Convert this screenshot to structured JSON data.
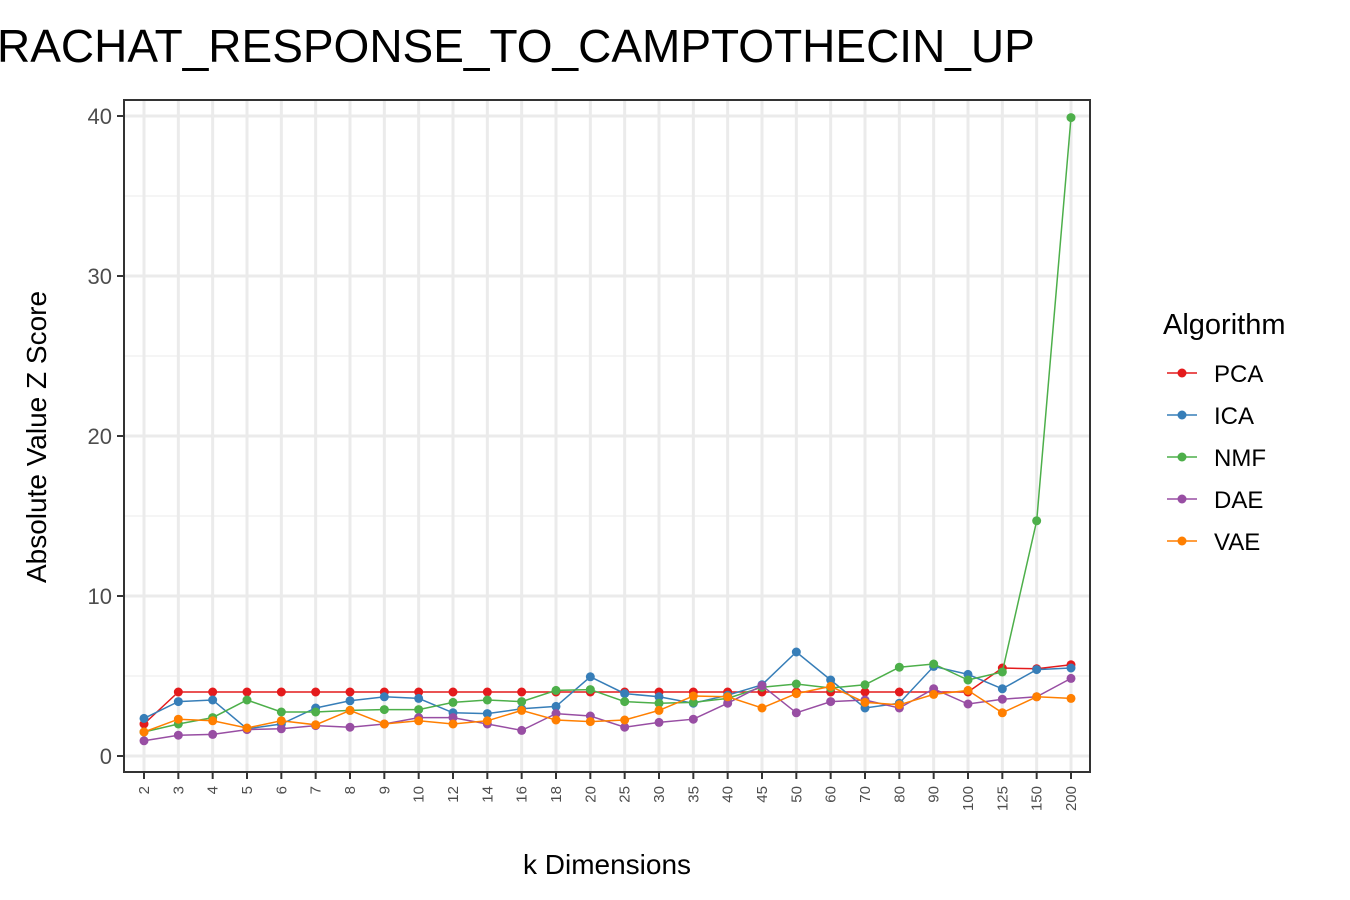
{
  "chart_data": {
    "type": "line",
    "title": "RACHAT_RESPONSE_TO_CAMPTOTHECIN_UP",
    "xlabel": "k Dimensions",
    "ylabel": "Absolute Value Z Score",
    "x": [
      "2",
      "3",
      "4",
      "5",
      "6",
      "7",
      "8",
      "9",
      "10",
      "12",
      "14",
      "16",
      "18",
      "20",
      "25",
      "30",
      "35",
      "40",
      "45",
      "50",
      "60",
      "70",
      "80",
      "90",
      "100",
      "125",
      "150",
      "200"
    ],
    "ylim": [
      -1,
      41
    ],
    "yticks": [
      0,
      10,
      20,
      30,
      40
    ],
    "grid": true,
    "legend_title": "Algorithm",
    "legend_position": "right",
    "series": [
      {
        "name": "PCA",
        "color": "#e41a1c",
        "values": [
          2.0,
          4.0,
          4.0,
          4.0,
          4.0,
          4.0,
          4.0,
          4.0,
          4.0,
          4.0,
          4.0,
          4.0,
          4.0,
          4.0,
          4.0,
          4.0,
          4.0,
          4.0,
          4.0,
          4.0,
          4.0,
          4.0,
          4.0,
          4.0,
          4.0,
          5.5,
          5.45,
          5.7
        ]
      },
      {
        "name": "ICA",
        "color": "#377eb8",
        "values": [
          2.35,
          3.4,
          3.5,
          1.7,
          2.0,
          3.0,
          3.45,
          3.7,
          3.6,
          2.7,
          2.65,
          2.95,
          3.1,
          4.95,
          3.9,
          3.7,
          3.3,
          3.8,
          4.45,
          6.5,
          4.75,
          3.0,
          3.3,
          5.6,
          5.1,
          4.2,
          5.4,
          5.5
        ]
      },
      {
        "name": "NMF",
        "color": "#4daf4a",
        "values": [
          1.5,
          2.0,
          2.4,
          3.5,
          2.75,
          2.75,
          2.85,
          2.9,
          2.9,
          3.35,
          3.5,
          3.4,
          4.1,
          4.15,
          3.4,
          3.3,
          3.35,
          3.6,
          4.3,
          4.5,
          4.25,
          4.45,
          5.55,
          5.75,
          4.75,
          5.25,
          14.7,
          39.9
        ]
      },
      {
        "name": "DAE",
        "color": "#984ea3",
        "values": [
          0.95,
          1.3,
          1.35,
          1.65,
          1.7,
          1.9,
          1.8,
          2.0,
          2.4,
          2.4,
          2.0,
          1.6,
          2.65,
          2.5,
          1.8,
          2.1,
          2.3,
          3.3,
          4.4,
          2.7,
          3.4,
          3.5,
          3.0,
          4.2,
          3.25,
          3.55,
          3.7,
          4.85
        ]
      },
      {
        "name": "VAE",
        "color": "#ff7f00",
        "values": [
          1.5,
          2.3,
          2.2,
          1.75,
          2.2,
          1.95,
          2.85,
          2.0,
          2.2,
          2.0,
          2.2,
          2.85,
          2.25,
          2.15,
          2.25,
          2.85,
          3.75,
          3.7,
          3.0,
          3.9,
          4.35,
          3.35,
          3.2,
          3.85,
          4.1,
          2.7,
          3.7,
          3.6
        ]
      }
    ]
  }
}
